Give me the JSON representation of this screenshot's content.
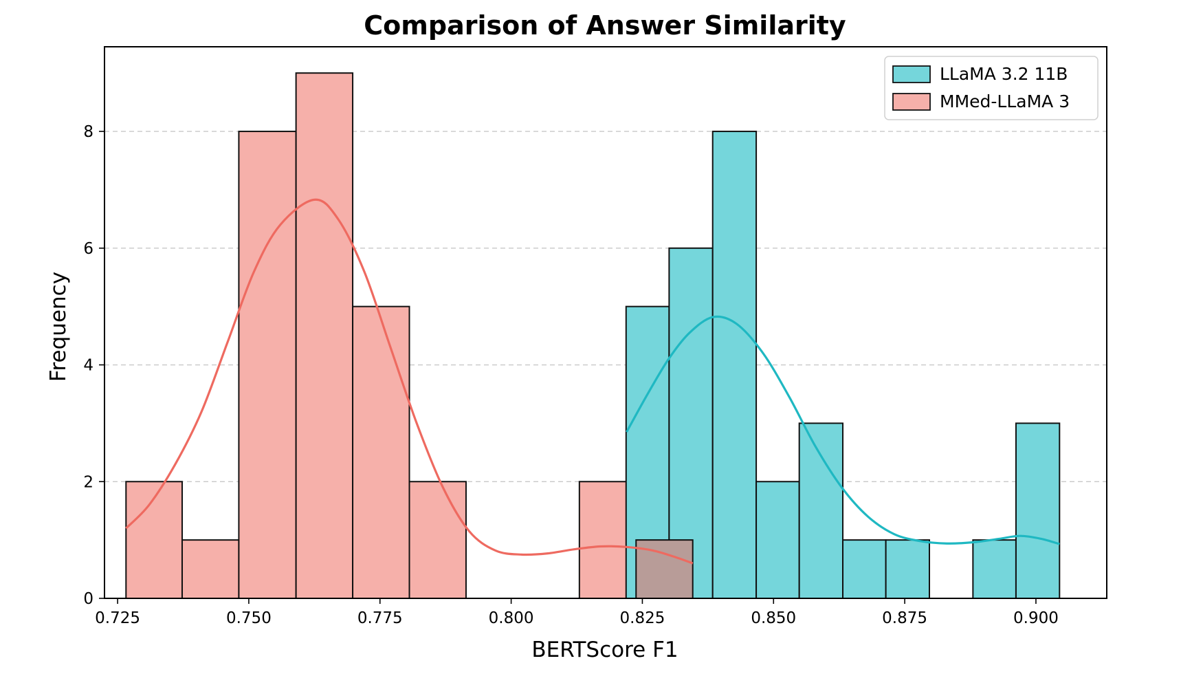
{
  "chart_data": {
    "type": "histogram",
    "title": "Comparison of Answer Similarity",
    "xlabel": "BERTScore F1",
    "ylabel": "Frequency",
    "xlim": [
      0.7225,
      0.9135
    ],
    "ylim": [
      0,
      9.45
    ],
    "grid": "y-dashed",
    "legend_position": "top-right",
    "xticks": [
      0.725,
      0.75,
      0.775,
      0.8,
      0.825,
      0.85,
      0.875,
      0.9
    ],
    "xtick_labels": [
      "0.725",
      "0.750",
      "0.775",
      "0.800",
      "0.825",
      "0.850",
      "0.875",
      "0.900"
    ],
    "yticks": [
      0,
      2,
      4,
      6,
      8
    ],
    "ytick_labels": [
      "0",
      "2",
      "4",
      "6",
      "8"
    ],
    "series": [
      {
        "name": "LLaMA 3.2 11B",
        "fill": "#75d6db",
        "line": "#1fb8c2",
        "bins": [
          {
            "x0": 0.8219,
            "x1": 0.8301,
            "count": 5
          },
          {
            "x0": 0.8301,
            "x1": 0.8384,
            "count": 6
          },
          {
            "x0": 0.8384,
            "x1": 0.8467,
            "count": 8
          },
          {
            "x0": 0.8467,
            "x1": 0.8549,
            "count": 2
          },
          {
            "x0": 0.8549,
            "x1": 0.8632,
            "count": 3
          },
          {
            "x0": 0.8632,
            "x1": 0.8714,
            "count": 1
          },
          {
            "x0": 0.8714,
            "x1": 0.8797,
            "count": 1
          },
          {
            "x0": 0.8797,
            "x1": 0.888,
            "count": 0
          },
          {
            "x0": 0.888,
            "x1": 0.8962,
            "count": 1
          },
          {
            "x0": 0.8962,
            "x1": 0.9045,
            "count": 3
          }
        ],
        "kde": [
          [
            0.822,
            2.85
          ],
          [
            0.826,
            3.5
          ],
          [
            0.83,
            4.1
          ],
          [
            0.834,
            4.55
          ],
          [
            0.8385,
            4.82
          ],
          [
            0.843,
            4.7
          ],
          [
            0.848,
            4.2
          ],
          [
            0.853,
            3.45
          ],
          [
            0.858,
            2.6
          ],
          [
            0.863,
            1.9
          ],
          [
            0.868,
            1.4
          ],
          [
            0.873,
            1.1
          ],
          [
            0.878,
            0.98
          ],
          [
            0.883,
            0.94
          ],
          [
            0.888,
            0.96
          ],
          [
            0.893,
            1.02
          ],
          [
            0.897,
            1.07
          ],
          [
            0.901,
            1.02
          ],
          [
            0.9045,
            0.93
          ]
        ]
      },
      {
        "name": "MMed-LLaMA 3",
        "fill": "#f6b0aa",
        "line": "#ee6a60",
        "bins": [
          {
            "x0": 0.7266,
            "x1": 0.7373,
            "count": 2
          },
          {
            "x0": 0.7373,
            "x1": 0.7481,
            "count": 1
          },
          {
            "x0": 0.7481,
            "x1": 0.759,
            "count": 8
          },
          {
            "x0": 0.759,
            "x1": 0.7698,
            "count": 9
          },
          {
            "x0": 0.7698,
            "x1": 0.7806,
            "count": 5
          },
          {
            "x0": 0.7806,
            "x1": 0.7914,
            "count": 2
          },
          {
            "x0": 0.7914,
            "x1": 0.8022,
            "count": 0
          },
          {
            "x0": 0.8022,
            "x1": 0.813,
            "count": 0
          },
          {
            "x0": 0.813,
            "x1": 0.8238,
            "count": 2
          },
          {
            "x0": 0.8238,
            "x1": 0.8346,
            "count": 1
          }
        ],
        "kde": [
          [
            0.7266,
            1.2
          ],
          [
            0.731,
            1.6
          ],
          [
            0.736,
            2.3
          ],
          [
            0.741,
            3.2
          ],
          [
            0.746,
            4.4
          ],
          [
            0.751,
            5.6
          ],
          [
            0.756,
            6.4
          ],
          [
            0.7625,
            6.83
          ],
          [
            0.767,
            6.5
          ],
          [
            0.772,
            5.6
          ],
          [
            0.777,
            4.3
          ],
          [
            0.782,
            3.0
          ],
          [
            0.787,
            1.9
          ],
          [
            0.792,
            1.15
          ],
          [
            0.797,
            0.82
          ],
          [
            0.802,
            0.75
          ],
          [
            0.807,
            0.77
          ],
          [
            0.812,
            0.84
          ],
          [
            0.817,
            0.89
          ],
          [
            0.822,
            0.88
          ],
          [
            0.827,
            0.82
          ],
          [
            0.8315,
            0.7
          ],
          [
            0.8346,
            0.6
          ]
        ]
      }
    ]
  }
}
